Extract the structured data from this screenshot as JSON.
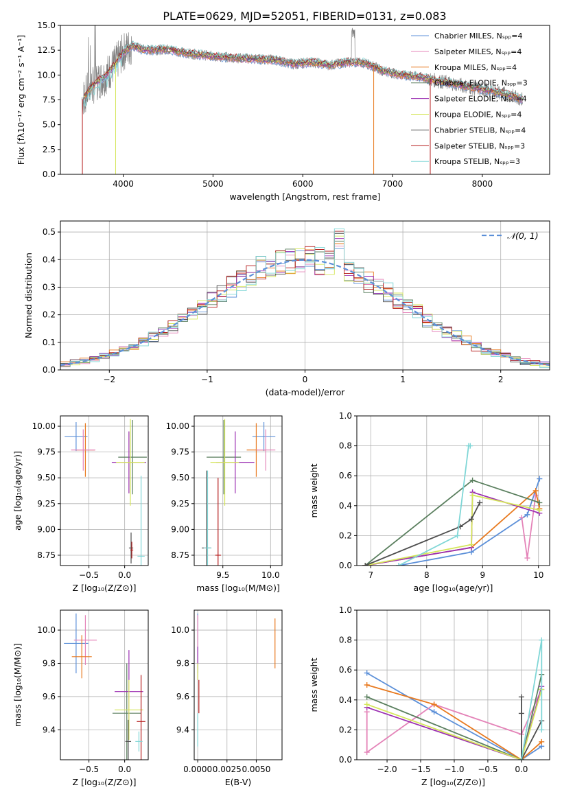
{
  "figure_title": "PLATE=0629, MJD=52051, FIBERID=0131, z=0.083",
  "colors": {
    "chabrier_miles": "#5b8fd8",
    "salpeter_miles": "#e483b8",
    "kroupa_miles": "#e8791e",
    "chabrier_elodie": "#5a7f5e",
    "salpeter_elodie": "#9b2fb2",
    "kroupa_elodie": "#d5e65a",
    "chabrier_stelib": "#4d4d4d",
    "salpeter_stelib": "#b51c1c",
    "kroupa_stelib": "#7fd6d6",
    "data": "#808080",
    "normal": "#5b8fd8"
  },
  "chart_data": [
    {
      "id": "spectrum",
      "type": "line",
      "title": "PLATE=0629, MJD=52051, FIBERID=0131, z=0.083",
      "xlabel": "wavelength [Angstrom, rest frame]",
      "ylabel": "Flux [fλ10⁻¹⁷ erg cm⁻² s⁻¹ A⁻¹]",
      "xlim": [
        3300,
        8750
      ],
      "ylim": [
        0,
        15
      ],
      "xticks": [
        "4000",
        "5000",
        "6000",
        "7000",
        "8000"
      ],
      "yticks": [
        "0.0",
        "2.5",
        "5.0",
        "7.5",
        "10.0",
        "12.5",
        "15.0"
      ],
      "grid": false,
      "legend_placement": "top-right",
      "legend": [
        "Chabrier MILES, Nₛₚₚ=4",
        "Salpeter MILES, Nₛₚₚ=4",
        "Kroupa MILES, Nₛₚₚ=4",
        "Chabrier ELODIE, Nₛₚₚ=3",
        "Salpeter ELODIE, Nₛₚₚ=4",
        "Kroupa ELODIE, Nₛₚₚ=4",
        "Chabrier STELIB, Nₛₚₚ=4",
        "Salpeter STELIB, Nₛₚₚ=3",
        "Kroupa STELIB, Nₛₚₚ=3"
      ],
      "continuum_x": [
        3540,
        3600,
        3700,
        3800,
        3900,
        4000,
        4100,
        4200,
        4300,
        4500,
        4700,
        4900,
        5100,
        5300,
        5500,
        5700,
        5900,
        6100,
        6300,
        6500,
        6700,
        6900,
        7100,
        7300,
        7500,
        7700,
        7900,
        8100,
        8300,
        8500
      ],
      "continuum_y": [
        7.5,
        8.3,
        9.3,
        9.9,
        11.0,
        12.3,
        13.0,
        12.6,
        12.5,
        12.6,
        12.2,
        12.0,
        11.8,
        11.7,
        11.6,
        11.5,
        11.1,
        11.3,
        11.0,
        11.3,
        11.2,
        10.4,
        10.0,
        9.8,
        9.4,
        9.1,
        8.7,
        8.4,
        8.0,
        7.4
      ]
    },
    {
      "id": "residuals",
      "type": "line",
      "xlabel": "(data-model)/error",
      "ylabel": "Normed distribution",
      "xlim": [
        -2.5,
        2.5
      ],
      "ylim": [
        0,
        0.54
      ],
      "xticks": [
        "−2",
        "−1",
        "0",
        "1",
        "2"
      ],
      "yticks": [
        "0.0",
        "0.1",
        "0.2",
        "0.3",
        "0.4",
        "0.5"
      ],
      "grid": true,
      "legend_placement": "top-right",
      "legend": [
        "𝒩(0, 1)"
      ]
    },
    {
      "id": "age_vs_Z",
      "type": "scatter",
      "xlabel": "Z [log₁₀(Z/Z⊙)]",
      "ylabel": "age  [log₁₀(age/yr)]",
      "xlim": [
        -0.9,
        0.33
      ],
      "ylim": [
        8.65,
        10.1
      ],
      "xticks": [
        "−0.5",
        "0.0"
      ],
      "yticks": [
        "8.75",
        "9.00",
        "9.25",
        "9.50",
        "9.75",
        "10.00"
      ],
      "grid": true,
      "series": [
        {
          "key": "chabrier_miles",
          "x": -0.68,
          "y": 9.9,
          "xerr": 0.16,
          "yerr": 0.14
        },
        {
          "key": "kroupa_miles",
          "x": -0.55,
          "y": 9.77,
          "xerr": 0.13,
          "yerr": 0.26
        },
        {
          "key": "salpeter_miles",
          "x": -0.58,
          "y": 9.77,
          "xerr": 0.17,
          "yerr": 0.2
        },
        {
          "key": "chabrier_elodie",
          "x": 0.11,
          "y": 9.7,
          "xerr": 0.2,
          "yerr": 0.36
        },
        {
          "key": "salpeter_elodie",
          "x": 0.06,
          "y": 9.65,
          "xerr": 0.24,
          "yerr": 0.3
        },
        {
          "key": "kroupa_elodie",
          "x": 0.08,
          "y": 9.65,
          "xerr": 0.2,
          "yerr": 0.42
        },
        {
          "key": "chabrier_stelib",
          "x": 0.09,
          "y": 8.82,
          "xerr": 0.03,
          "yerr": 0.15
        },
        {
          "key": "salpeter_stelib",
          "x": 0.1,
          "y": 8.8,
          "xerr": 0.02,
          "yerr": 0.08
        },
        {
          "key": "kroupa_stelib",
          "x": 0.23,
          "y": 8.74,
          "xerr": 0.05,
          "yerr": 0.78
        }
      ]
    },
    {
      "id": "age_vs_mass",
      "type": "scatter",
      "xlabel": "mass [log₁₀(M/M⊙)]",
      "xlim": [
        9.2,
        10.12
      ],
      "ylim": [
        8.65,
        10.1
      ],
      "xticks": [
        "9.5",
        "10.0"
      ],
      "yticks": [
        "8.75",
        "9.00",
        "9.25",
        "9.50",
        "9.75",
        "10.00"
      ],
      "grid": true,
      "series": [
        {
          "key": "chabrier_miles",
          "x": 9.93,
          "y": 9.9,
          "xerr": 0.12,
          "yerr": 0.14
        },
        {
          "key": "kroupa_miles",
          "x": 9.85,
          "y": 9.77,
          "xerr": 0.1,
          "yerr": 0.26
        },
        {
          "key": "salpeter_miles",
          "x": 9.95,
          "y": 9.77,
          "xerr": 0.1,
          "yerr": 0.2
        },
        {
          "key": "chabrier_elodie",
          "x": 9.51,
          "y": 9.7,
          "xerr": 0.18,
          "yerr": 0.36
        },
        {
          "key": "salpeter_elodie",
          "x": 9.63,
          "y": 9.65,
          "xerr": 0.2,
          "yerr": 0.3
        },
        {
          "key": "kroupa_elodie",
          "x": 9.52,
          "y": 9.65,
          "xerr": 0.15,
          "yerr": 0.42
        },
        {
          "key": "chabrier_stelib",
          "x": 9.33,
          "y": 8.82,
          "xerr": 0.05,
          "yerr": 0.75
        },
        {
          "key": "salpeter_stelib",
          "x": 9.45,
          "y": 8.75,
          "xerr": 0.03,
          "yerr": 0.75
        },
        {
          "key": "kroupa_stelib",
          "x": 9.34,
          "y": 8.82,
          "xerr": 0.04,
          "yerr": 0.75
        }
      ]
    },
    {
      "id": "weight_vs_age",
      "type": "line",
      "xlabel": "age  [log₁₀(age/yr)]",
      "ylabel": "mass weight",
      "xlim": [
        6.75,
        10.2
      ],
      "ylim": [
        0,
        1.0
      ],
      "xticks": [
        "7",
        "8",
        "9",
        "10"
      ],
      "yticks": [
        "0.0",
        "0.2",
        "0.4",
        "0.6",
        "0.8",
        "1.0"
      ],
      "grid": true,
      "series": [
        {
          "key": "chabrier_miles",
          "x": [
            7.5,
            8.8,
            9.8,
            10.02
          ],
          "y": [
            0.0,
            0.09,
            0.34,
            0.58
          ]
        },
        {
          "key": "salpeter_miles",
          "x": [
            9.7,
            9.8,
            9.95
          ],
          "y": [
            0.32,
            0.05,
            0.47
          ]
        },
        {
          "key": "kroupa_miles",
          "x": [
            6.9,
            8.8,
            9.95,
            10.02
          ],
          "y": [
            0.0,
            0.12,
            0.5,
            0.38
          ]
        },
        {
          "key": "chabrier_elodie",
          "x": [
            6.9,
            8.82,
            10.02
          ],
          "y": [
            0.0,
            0.57,
            0.42
          ]
        },
        {
          "key": "salpeter_elodie",
          "x": [
            6.9,
            8.8,
            8.82,
            10.02
          ],
          "y": [
            0.0,
            0.12,
            0.49,
            0.35
          ]
        },
        {
          "key": "kroupa_elodie",
          "x": [
            6.9,
            8.8,
            8.82,
            10.02
          ],
          "y": [
            0.0,
            0.14,
            0.47,
            0.37
          ]
        },
        {
          "key": "chabrier_stelib",
          "x": [
            6.9,
            8.6,
            8.8,
            8.95
          ],
          "y": [
            0.0,
            0.26,
            0.31,
            0.42
          ]
        },
        {
          "key": "kroupa_stelib",
          "x": [
            7.5,
            8.55,
            8.75,
            8.78
          ],
          "y": [
            0.0,
            0.2,
            0.8,
            0.8
          ]
        }
      ]
    },
    {
      "id": "mass_vs_Z",
      "type": "scatter",
      "xlabel": "Z [log₁₀(Z/Z⊙)]",
      "ylabel": "mass [log₁₀(M/M⊙)]",
      "xlim": [
        -0.9,
        0.33
      ],
      "ylim": [
        9.22,
        10.12
      ],
      "xticks": [
        "−0.5",
        "0.0"
      ],
      "yticks": [
        "9.4",
        "9.6",
        "9.8",
        "10.0"
      ],
      "grid": true,
      "series": [
        {
          "key": "chabrier_miles",
          "x": -0.68,
          "y": 9.92,
          "xerr": 0.17,
          "yerr": 0.18
        },
        {
          "key": "salpeter_miles",
          "x": -0.55,
          "y": 9.94,
          "xerr": 0.16,
          "yerr": 0.15
        },
        {
          "key": "kroupa_miles",
          "x": -0.6,
          "y": 9.84,
          "xerr": 0.14,
          "yerr": 0.13
        },
        {
          "key": "chabrier_elodie",
          "x": 0.03,
          "y": 9.5,
          "xerr": 0.2,
          "yerr": 0.3
        },
        {
          "key": "salpeter_elodie",
          "x": 0.06,
          "y": 9.63,
          "xerr": 0.2,
          "yerr": 0.25
        },
        {
          "key": "kroupa_elodie",
          "x": 0.06,
          "y": 9.52,
          "xerr": 0.2,
          "yerr": 0.18
        },
        {
          "key": "chabrier_stelib",
          "x": 0.05,
          "y": 9.33,
          "xerr": 0.04,
          "yerr": 0.13
        },
        {
          "key": "salpeter_stelib",
          "x": 0.23,
          "y": 9.45,
          "xerr": 0.06,
          "yerr": 0.28
        },
        {
          "key": "kroupa_stelib",
          "x": 0.2,
          "y": 9.33,
          "xerr": 0.05,
          "yerr": 0.06
        }
      ]
    },
    {
      "id": "mass_vs_ebv",
      "type": "scatter",
      "xlabel": "E(B-V)",
      "xlim": [
        -0.0003,
        0.0072
      ],
      "ylim": [
        9.22,
        10.12
      ],
      "xticks": [
        "0.0000",
        "0.0025",
        "0.0050"
      ],
      "yticks": [
        "9.4",
        "9.6",
        "9.8",
        "10.0"
      ],
      "grid": true,
      "series": [
        {
          "key": "chabrier_miles",
          "x": 0.0,
          "y": 9.92,
          "xerr": 0.0,
          "yerr": 0.18
        },
        {
          "key": "salpeter_miles",
          "x": 0.0,
          "y": 9.94,
          "xerr": 0.0,
          "yerr": 0.15
        },
        {
          "key": "kroupa_miles",
          "x": 0.0066,
          "y": 9.92,
          "xerr": 0.0,
          "yerr": 0.15
        },
        {
          "key": "salpeter_elodie",
          "x": 0.0,
          "y": 9.8,
          "xerr": 0.0,
          "yerr": 0.1
        },
        {
          "key": "kroupa_elodie",
          "x": 0.0,
          "y": 9.75,
          "xerr": 0.0,
          "yerr": 0.05
        },
        {
          "key": "salpeter_stelib",
          "x": 0.0001,
          "y": 9.6,
          "xerr": 0.0,
          "yerr": 0.1
        },
        {
          "key": "kroupa_stelib",
          "x": 0.0,
          "y": 9.4,
          "xerr": 0.0,
          "yerr": 0.1
        }
      ]
    },
    {
      "id": "weight_vs_Z",
      "type": "line",
      "xlabel": "Z [log₁₀(Z/Z⊙)]",
      "ylabel": "mass weight",
      "xlim": [
        -2.45,
        0.42
      ],
      "ylim": [
        0,
        1.0
      ],
      "xticks": [
        "−2.0",
        "−1.5",
        "−1.0",
        "−0.5",
        "0.0"
      ],
      "yticks": [
        "0.0",
        "0.2",
        "0.4",
        "0.6",
        "0.8",
        "1.0"
      ],
      "grid": true,
      "series": [
        {
          "key": "chabrier_miles",
          "x": [
            -2.3,
            -1.3,
            0.0,
            0.3
          ],
          "y": [
            0.58,
            0.32,
            0.0,
            0.09
          ]
        },
        {
          "key": "salpeter_miles",
          "x": [
            -2.3,
            -2.3,
            -1.3,
            0.0,
            0.3
          ],
          "y": [
            0.32,
            0.05,
            0.37,
            0.17,
            0.47
          ]
        },
        {
          "key": "kroupa_miles",
          "x": [
            -2.3,
            -1.3,
            0.0,
            0.3
          ],
          "y": [
            0.5,
            0.37,
            0.0,
            0.12
          ]
        },
        {
          "key": "chabrier_elodie",
          "x": [
            -2.3,
            0.0,
            0.3
          ],
          "y": [
            0.42,
            0.0,
            0.57
          ]
        },
        {
          "key": "salpeter_elodie",
          "x": [
            -2.3,
            0.0,
            0.3
          ],
          "y": [
            0.35,
            0.0,
            0.49
          ]
        },
        {
          "key": "kroupa_elodie",
          "x": [
            -2.3,
            0.0,
            0.3
          ],
          "y": [
            0.37,
            0.0,
            0.47
          ]
        },
        {
          "key": "chabrier_stelib",
          "x": [
            0.0,
            0.0,
            0.0,
            0.3
          ],
          "y": [
            0.42,
            0.31,
            0.0,
            0.26
          ]
        },
        {
          "key": "kroupa_stelib",
          "x": [
            0.0,
            0.3,
            0.3
          ],
          "y": [
            0.0,
            0.8,
            0.2
          ]
        }
      ]
    }
  ]
}
